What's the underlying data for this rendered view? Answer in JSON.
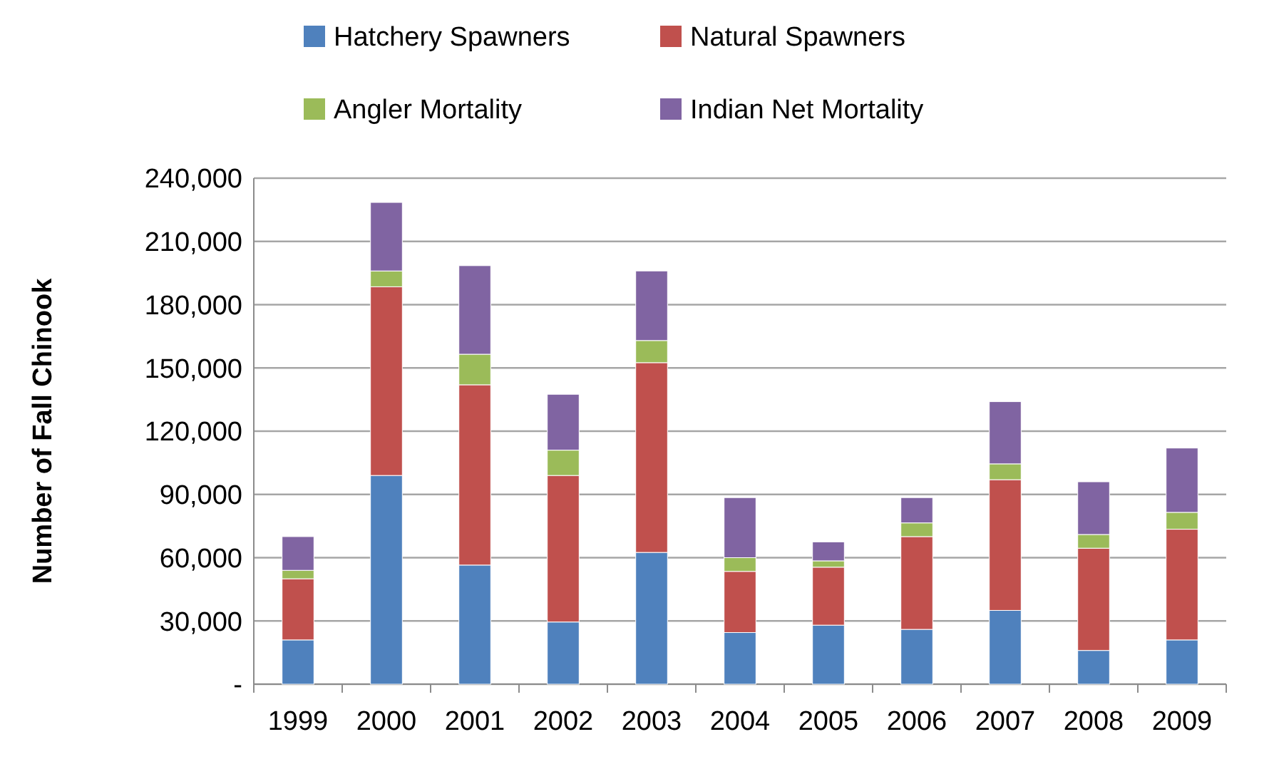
{
  "chart_data": {
    "type": "bar",
    "stacked": true,
    "ylabel": "Number of Fall Chinook",
    "categories": [
      "1999",
      "2000",
      "2001",
      "2002",
      "2003",
      "2004",
      "2005",
      "2006",
      "2007",
      "2008",
      "2009"
    ],
    "series": [
      {
        "name": "Hatchery Spawners",
        "color": "#4f81bd",
        "values": [
          21000,
          99000,
          56500,
          29500,
          62500,
          24500,
          28000,
          26000,
          35000,
          16000,
          21000
        ]
      },
      {
        "name": "Natural Spawners",
        "color": "#c0504d",
        "values": [
          29000,
          89500,
          85500,
          69500,
          90000,
          29000,
          27500,
          44000,
          62000,
          48500,
          52500
        ]
      },
      {
        "name": "Angler Mortality",
        "color": "#9bbb59",
        "values": [
          4000,
          7500,
          14500,
          12000,
          10500,
          6500,
          3000,
          6500,
          7500,
          6500,
          8000
        ]
      },
      {
        "name": "Indian Net Mortality",
        "color": "#8064a2",
        "values": [
          16000,
          32500,
          42000,
          26500,
          33000,
          28500,
          9000,
          12000,
          29500,
          25000,
          30500
        ]
      }
    ],
    "ylim": [
      0,
      240000
    ],
    "yticks": [
      {
        "value": 0,
        "label": "-"
      },
      {
        "value": 30000,
        "label": "30,000"
      },
      {
        "value": 60000,
        "label": "60,000"
      },
      {
        "value": 90000,
        "label": "90,000"
      },
      {
        "value": 120000,
        "label": "120,000"
      },
      {
        "value": 150000,
        "label": "150,000"
      },
      {
        "value": 180000,
        "label": "180,000"
      },
      {
        "value": 210000,
        "label": "210,000"
      },
      {
        "value": 240000,
        "label": "240,000"
      }
    ],
    "grid": "y",
    "legend": "top"
  }
}
